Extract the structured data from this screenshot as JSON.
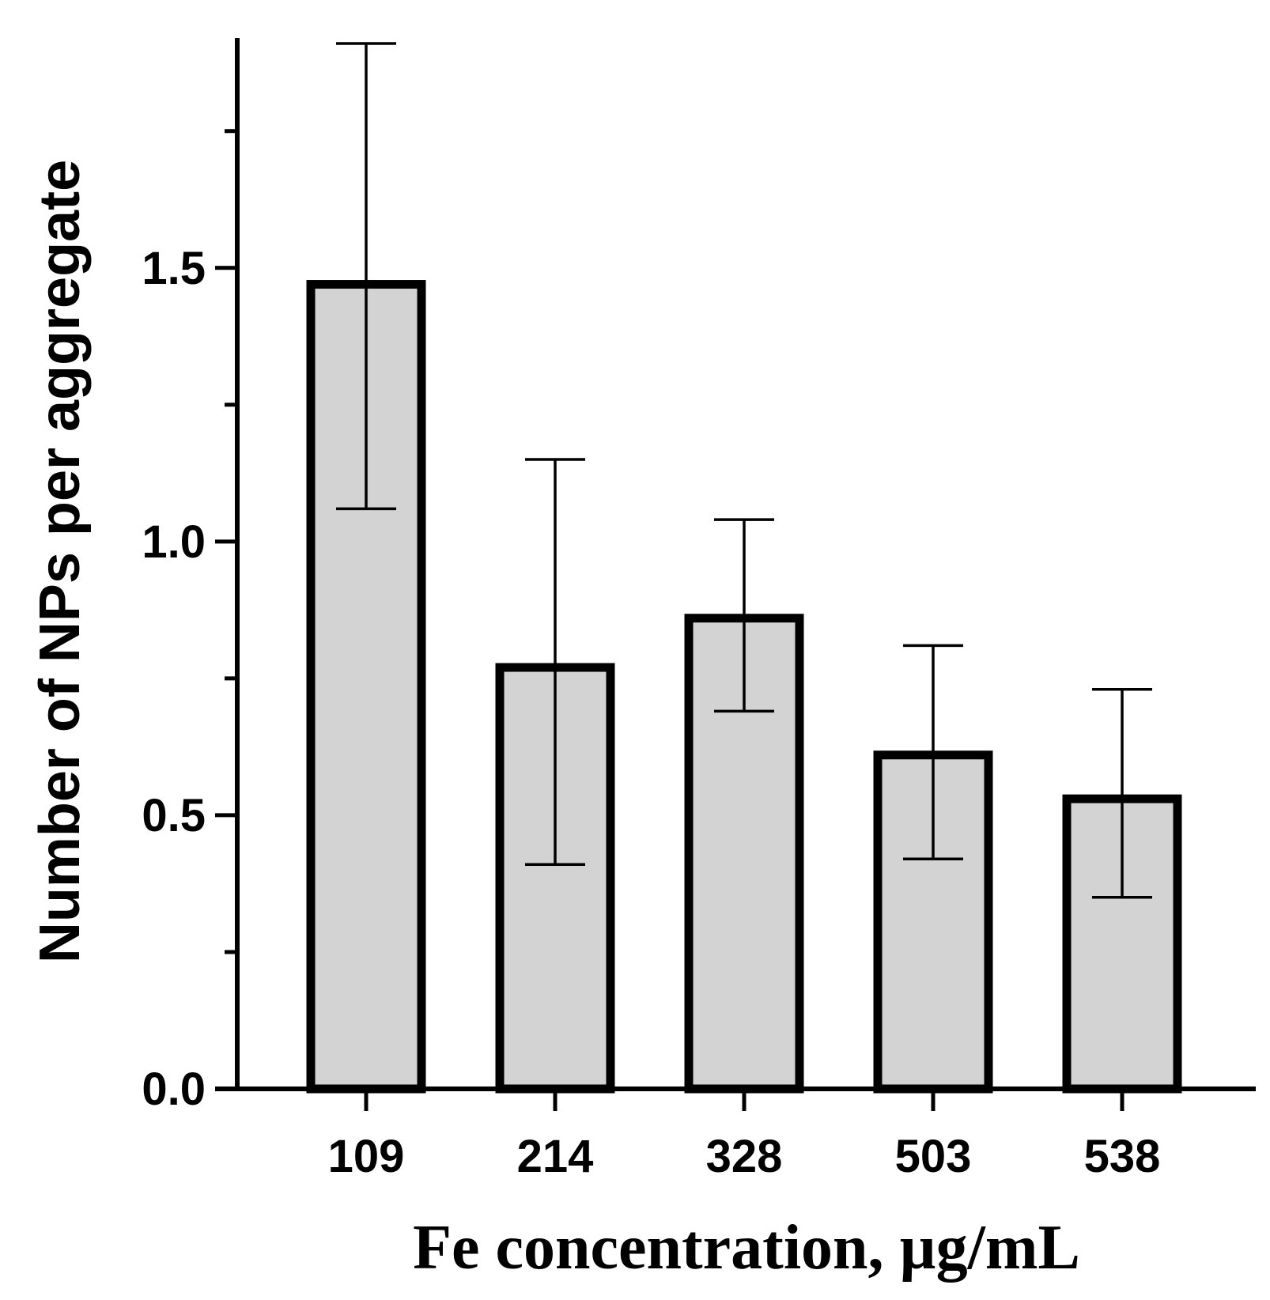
{
  "chart_data": {
    "type": "bar",
    "title": "",
    "xlabel": "Fe concentration, µg/mL",
    "ylabel": "Number of NPs per aggregate",
    "categories": [
      "109",
      "214",
      "328",
      "503",
      "538"
    ],
    "values": [
      1.47,
      0.77,
      0.86,
      0.61,
      0.53
    ],
    "error_upper": [
      1.91,
      1.15,
      1.04,
      0.81,
      0.73
    ],
    "error_lower": [
      1.06,
      0.41,
      0.69,
      0.42,
      0.35
    ],
    "ylim": [
      0,
      1.91
    ],
    "yticks": [
      0.0,
      0.5,
      1.0,
      1.5
    ],
    "ytick_labels": [
      "0.0",
      "0.5",
      "1.0",
      "1.5"
    ],
    "minor_yticks": [
      0.25,
      0.75,
      1.25,
      1.75
    ],
    "grid": false,
    "colors": {
      "bar_fill": "#d3d3d3",
      "bar_edge": "#000000",
      "axis": "#000000"
    }
  }
}
